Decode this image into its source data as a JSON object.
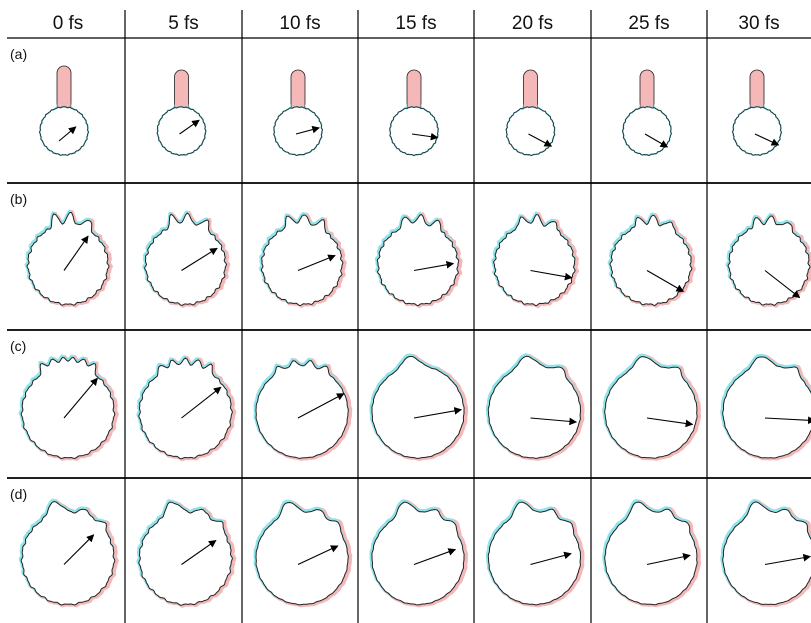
{
  "figure": {
    "columns": [
      "0 fs",
      "5 fs",
      "10 fs",
      "15 fs",
      "20 fs",
      "25 fs",
      "30 fs"
    ],
    "rows": [
      {
        "label": "(a)",
        "type": "tube"
      },
      {
        "label": "(b)",
        "type": "spiky"
      },
      {
        "label": "(c)",
        "type": "bumpy"
      },
      {
        "label": "(d)",
        "type": "lobed"
      }
    ],
    "colors": {
      "outline": "#222222",
      "reference_outline": "#2a8f9a",
      "pink_fill": "#f4b8b8",
      "cyan_fill": "#8fe3ea",
      "grid": "#000000",
      "arrow": "#000000"
    }
  }
}
